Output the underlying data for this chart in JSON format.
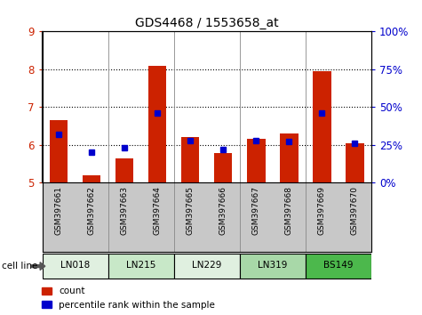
{
  "title": "GDS4468 / 1553658_at",
  "samples": [
    "GSM397661",
    "GSM397662",
    "GSM397663",
    "GSM397664",
    "GSM397665",
    "GSM397666",
    "GSM397667",
    "GSM397668",
    "GSM397669",
    "GSM397670"
  ],
  "count_values": [
    6.65,
    5.2,
    5.65,
    8.1,
    6.2,
    5.78,
    6.15,
    6.3,
    7.95,
    6.05
  ],
  "percentile_values": [
    32,
    20,
    23,
    46,
    28,
    22,
    28,
    27,
    46,
    26
  ],
  "ylim_left": [
    5,
    9
  ],
  "ylim_right": [
    0,
    100
  ],
  "yticks_left": [
    5,
    6,
    7,
    8,
    9
  ],
  "yticks_right": [
    0,
    25,
    50,
    75,
    100
  ],
  "bar_color": "#cc2200",
  "dot_color": "#0000cc",
  "bar_bottom": 5,
  "bar_width": 0.55,
  "cell_line_names": [
    "LN018",
    "LN215",
    "LN229",
    "LN319",
    "BS149"
  ],
  "cell_line_spans": [
    [
      0,
      2
    ],
    [
      2,
      4
    ],
    [
      4,
      6
    ],
    [
      6,
      8
    ],
    [
      8,
      10
    ]
  ],
  "cell_line_colors": [
    "#e0f0e0",
    "#c8e8c8",
    "#e0f0e0",
    "#a8d8a8",
    "#4cb84c"
  ],
  "tick_bg_color": "#c8c8c8",
  "grid_yticks": [
    6,
    7,
    8
  ],
  "group_boundaries": [
    1.5,
    3.5,
    5.5,
    7.5
  ]
}
